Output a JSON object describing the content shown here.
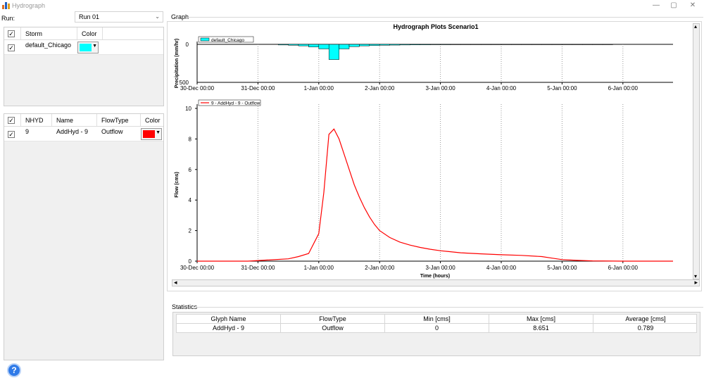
{
  "window": {
    "title": "Hydrograph",
    "icon": "bar-chart-icon",
    "minimize_glyph": "—",
    "maximize_glyph": "▢",
    "close_glyph": "✕"
  },
  "run": {
    "label": "Run:",
    "selected": "Run 01"
  },
  "storm_table": {
    "headers": {
      "check": "✓",
      "storm": "Storm",
      "color": "Color"
    },
    "rows": [
      {
        "checked": "✓",
        "storm": "default_Chicago",
        "color": "#00ffff"
      }
    ]
  },
  "hyd_table": {
    "headers": {
      "check": "✓",
      "nhyd": "NHYD",
      "name": "Name",
      "flowtype": "FlowType",
      "color": "Color"
    },
    "rows": [
      {
        "checked": "✓",
        "nhyd": "9",
        "name": "AddHyd - 9",
        "flowtype": "Outflow",
        "color": "#ff0000"
      }
    ]
  },
  "graph": {
    "group_label": "Graph",
    "scroll_left": "◂",
    "scroll_right": "▸",
    "scroll_up": "▴",
    "scroll_down": "▾"
  },
  "chart_data": [
    {
      "type": "bar",
      "title": "Hydrograph Plots Scenario1",
      "ylabel": "Precipitation (mm/hr)",
      "ylim": [
        0,
        500
      ],
      "y_inverted": true,
      "y_ticks": [
        "0",
        "500"
      ],
      "x_ticks": [
        "30-Dec 00:00",
        "31-Dec 00:00",
        "1-Jan 00:00",
        "2-Jan 00:00",
        "3-Jan 00:00",
        "4-Jan 00:00",
        "5-Jan 00:00",
        "6-Jan 00:00"
      ],
      "legend": "default_Chicago",
      "legend_position": "top-left",
      "color": "#00ffff",
      "x_hours": [
        36,
        40,
        44,
        48,
        52,
        56,
        60,
        64,
        68,
        72,
        76,
        80,
        84,
        88,
        92,
        96,
        100,
        104,
        108,
        112,
        116,
        120,
        124,
        128,
        132,
        136,
        140,
        144,
        148,
        152,
        156,
        160,
        164
      ],
      "values": [
        8,
        12,
        20,
        35,
        60,
        200,
        60,
        30,
        20,
        15,
        12,
        10,
        8,
        7,
        6,
        5,
        5,
        4,
        4,
        3,
        3,
        3,
        2,
        2,
        2,
        2,
        2,
        2,
        1,
        1,
        1,
        1,
        1
      ],
      "grid": "vertical dotted"
    },
    {
      "type": "line",
      "ylabel": "Flow (cms)",
      "xlabel": "Time (hours)",
      "ylim": [
        0,
        10
      ],
      "y_ticks": [
        "0",
        "2",
        "4",
        "6",
        "8",
        "10"
      ],
      "x_ticks": [
        "30-Dec 00:00",
        "31-Dec 00:00",
        "1-Jan 00:00",
        "2-Jan 00:00",
        "3-Jan 00:00",
        "4-Jan 00:00",
        "5-Jan 00:00",
        "6-Jan 00:00"
      ],
      "legend": "9 - AddHyd - 9 - Outflow",
      "legend_position": "top-left",
      "color": "#ff0000",
      "x_hours": [
        0,
        20,
        36,
        40,
        44,
        48,
        50,
        52,
        54,
        56,
        58,
        60,
        62,
        64,
        66,
        68,
        70,
        72,
        76,
        80,
        84,
        88,
        92,
        96,
        104,
        112,
        120,
        128,
        136,
        140,
        144,
        150,
        156,
        168,
        192,
        216
      ],
      "values": [
        0,
        0,
        0.15,
        0.3,
        0.5,
        1.8,
        4.5,
        8.3,
        8.65,
        8.0,
        7.0,
        6.0,
        5.0,
        4.2,
        3.5,
        2.9,
        2.4,
        2.0,
        1.55,
        1.25,
        1.05,
        0.9,
        0.78,
        0.68,
        0.55,
        0.48,
        0.42,
        0.38,
        0.3,
        0.2,
        0.1,
        0.05,
        0.02,
        0,
        0,
        0
      ],
      "grid": "vertical dotted"
    }
  ],
  "statistics": {
    "group_label": "Statistics",
    "headers": [
      "Glyph Name",
      "FlowType",
      "Min [cms]",
      "Max [cms]",
      "Average [cms]"
    ],
    "rows": [
      [
        "AddHyd - 9",
        "Outflow",
        "0",
        "8.651",
        "0.789"
      ]
    ]
  },
  "help": {
    "glyph": "?",
    "icon": "help-icon"
  }
}
